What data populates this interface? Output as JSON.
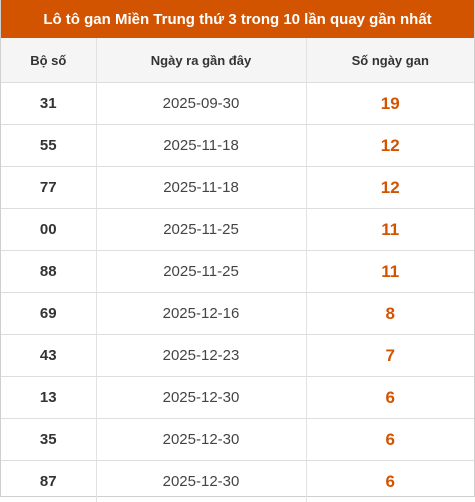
{
  "header": {
    "title": "Lô tô gan Miền Trung thứ 3 trong 10 lần quay gần nhất"
  },
  "table": {
    "columns": [
      "Bộ số",
      "Ngày ra gần đây",
      "Số ngày gan"
    ],
    "rows": [
      {
        "number": "31",
        "date": "2025-09-30",
        "gan": "19"
      },
      {
        "number": "55",
        "date": "2025-11-18",
        "gan": "12"
      },
      {
        "number": "77",
        "date": "2025-11-18",
        "gan": "12"
      },
      {
        "number": "00",
        "date": "2025-11-25",
        "gan": "11"
      },
      {
        "number": "88",
        "date": "2025-11-25",
        "gan": "11"
      },
      {
        "number": "69",
        "date": "2025-12-16",
        "gan": "8"
      },
      {
        "number": "43",
        "date": "2025-12-23",
        "gan": "7"
      },
      {
        "number": "13",
        "date": "2025-12-30",
        "gan": "6"
      },
      {
        "number": "35",
        "date": "2025-12-30",
        "gan": "6"
      },
      {
        "number": "87",
        "date": "2025-12-30",
        "gan": "6"
      }
    ]
  },
  "colors": {
    "accent": "#d35400",
    "header_bg": "#f5f5f5",
    "border": "#dddddd"
  }
}
